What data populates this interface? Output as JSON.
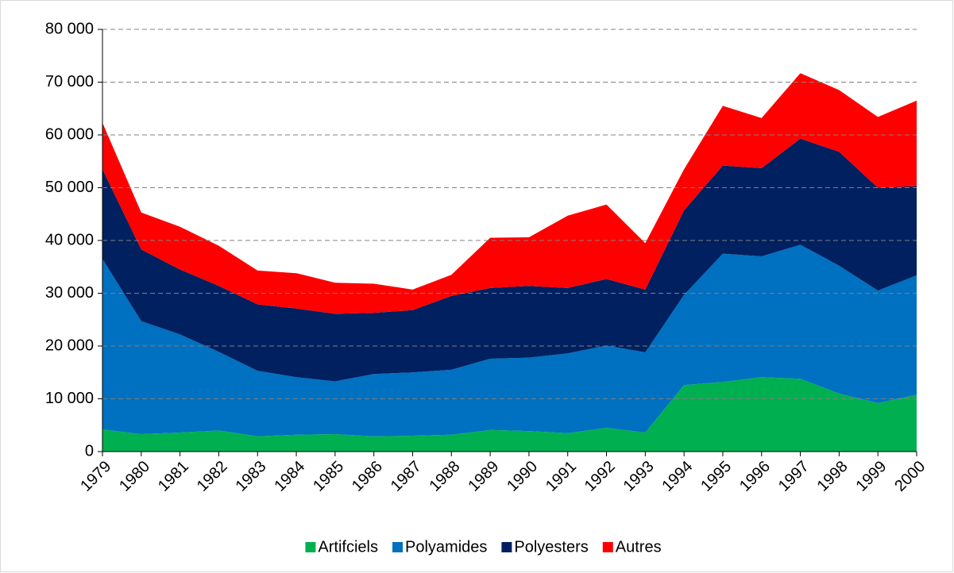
{
  "chart_data": {
    "type": "stacked_area",
    "categories": [
      "1979",
      "1980",
      "1981",
      "1982",
      "1983",
      "1984",
      "1985",
      "1986",
      "1987",
      "1988",
      "1989",
      "1990",
      "1991",
      "1992",
      "1993",
      "1994",
      "1995",
      "1996",
      "1997",
      "1998",
      "1999",
      "2000"
    ],
    "series": [
      {
        "name": "Artifciels",
        "color": "#00b050",
        "values": [
          4200,
          3300,
          3600,
          4000,
          2900,
          3200,
          3300,
          2900,
          3000,
          3200,
          4100,
          3900,
          3500,
          4500,
          3600,
          12600,
          13200,
          14100,
          13800,
          11000,
          9200,
          10800
        ]
      },
      {
        "name": "Polyamides",
        "color": "#0070c0",
        "values": [
          32300,
          21400,
          18600,
          14900,
          12400,
          10900,
          10000,
          11800,
          12000,
          12300,
          13500,
          13900,
          15100,
          15600,
          15200,
          17100,
          24300,
          22900,
          25400,
          24200,
          21300,
          22600
        ]
      },
      {
        "name": "Polyesters",
        "color": "#002060",
        "values": [
          17000,
          13600,
          12300,
          12500,
          12600,
          13000,
          12800,
          11600,
          11800,
          14000,
          13400,
          13600,
          12400,
          12600,
          11900,
          16000,
          16700,
          16700,
          20100,
          21600,
          19500,
          16900
        ]
      },
      {
        "name": "Autres",
        "color": "#ff0000",
        "values": [
          8800,
          7000,
          8100,
          7600,
          6400,
          6700,
          5900,
          5500,
          3900,
          4000,
          9500,
          9200,
          13700,
          14100,
          8800,
          7800,
          11300,
          9500,
          12400,
          11700,
          13400,
          16200
        ]
      }
    ],
    "ylim": [
      0,
      80000
    ],
    "yticks": [
      0,
      {
        "value": 10000,
        "label": "10 000"
      },
      {
        "value": 20000,
        "label": "20 000"
      },
      {
        "value": 30000,
        "label": "30 000"
      },
      {
        "value": 40000,
        "label": "40 000"
      },
      {
        "value": 50000,
        "label": "50 000"
      },
      {
        "value": 60000,
        "label": "60 000"
      },
      {
        "value": 70000,
        "label": "70 000"
      },
      {
        "value": 80000,
        "label": "80 000"
      }
    ],
    "grid": true,
    "legend": "bottom"
  }
}
